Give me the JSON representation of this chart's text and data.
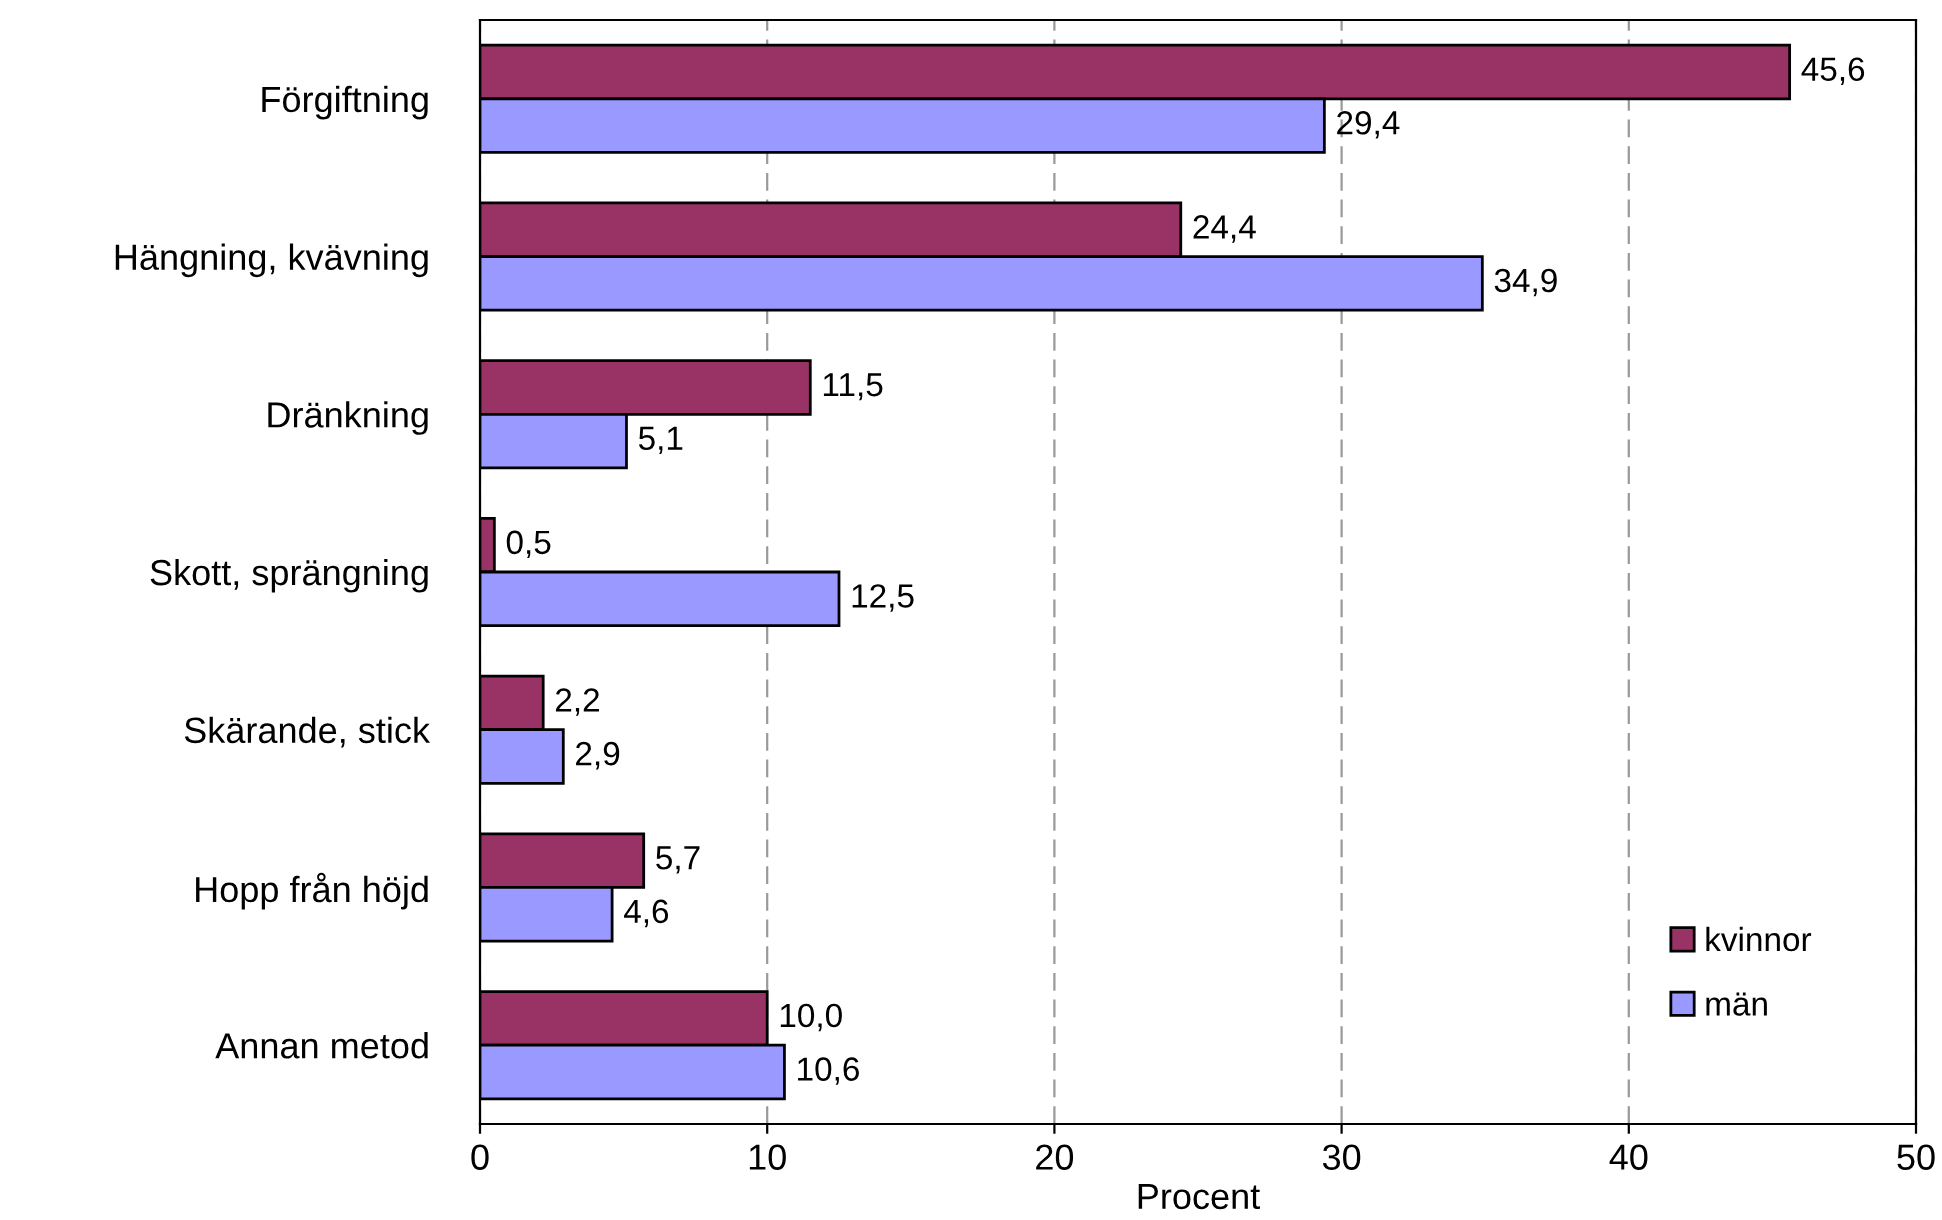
{
  "chart_data": {
    "type": "bar",
    "orientation": "horizontal",
    "xlabel": "Procent",
    "categories": [
      "Förgiftning",
      "Hängning, kvävning",
      "Dränkning",
      "Skott, sprängning",
      "Skärande, stick",
      "Hopp från höjd",
      "Annan metod"
    ],
    "series": [
      {
        "name": "kvinnor",
        "color": "#993366",
        "values": [
          45.6,
          24.4,
          11.5,
          0.5,
          2.2,
          5.7,
          10.0
        ],
        "value_labels": [
          "45,6",
          "24,4",
          "11,5",
          "0,5",
          "2,2",
          "5,7",
          "10,0"
        ]
      },
      {
        "name": "män",
        "color": "#9999ff",
        "values": [
          29.4,
          34.9,
          5.1,
          12.5,
          2.9,
          4.6,
          10.6
        ],
        "value_labels": [
          "29,4",
          "34,9",
          "5,1",
          "12,5",
          "2,9",
          "4,6",
          "10,6"
        ]
      }
    ],
    "xlim": [
      0,
      50
    ],
    "xticks": [
      0,
      10,
      20,
      30,
      40,
      50
    ],
    "grid": "x",
    "legend": "bottom right"
  }
}
